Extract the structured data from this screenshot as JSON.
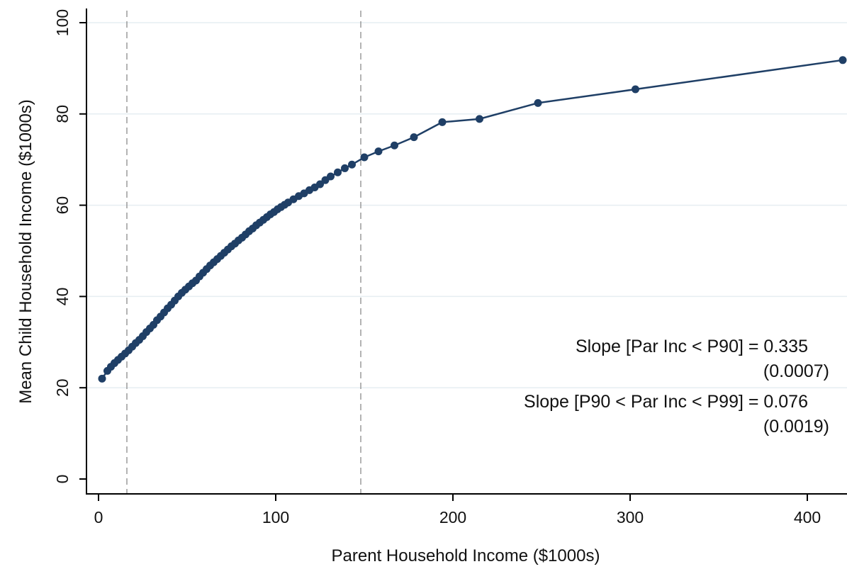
{
  "colors": {
    "series": "#1f3f66",
    "grid": "#e6eef2",
    "axis": "#000000",
    "guide": "#9a9a9a"
  },
  "chart_data": {
    "type": "scatter",
    "xlabel": "Parent Household Income ($1000s)",
    "ylabel": "Mean Child Household Income ($1000s)",
    "xlim": [
      0,
      420
    ],
    "ylim": [
      0,
      100
    ],
    "xticks": [
      0,
      100,
      200,
      300,
      400
    ],
    "yticks": [
      0,
      20,
      40,
      60,
      80,
      100
    ],
    "grid": "horizontal",
    "vertical_reference_lines": [
      16,
      148
    ],
    "series": [
      {
        "connected": true,
        "points": [
          [
            2,
            22.0
          ],
          [
            5,
            23.7
          ],
          [
            7,
            24.6
          ],
          [
            9,
            25.4
          ],
          [
            11,
            26.1
          ],
          [
            13,
            26.8
          ],
          [
            15,
            27.5
          ],
          [
            17,
            28.2
          ],
          [
            19,
            29.0
          ],
          [
            21,
            29.8
          ],
          [
            23,
            30.5
          ],
          [
            25,
            31.3
          ],
          [
            27,
            32.2
          ],
          [
            29,
            33.0
          ],
          [
            31,
            33.8
          ],
          [
            33,
            34.8
          ],
          [
            35,
            35.6
          ],
          [
            37,
            36.5
          ],
          [
            39,
            37.4
          ],
          [
            41,
            38.2
          ],
          [
            43,
            39.1
          ],
          [
            45,
            40.0
          ],
          [
            47,
            40.8
          ],
          [
            49,
            41.5
          ],
          [
            51,
            42.2
          ],
          [
            53,
            42.9
          ],
          [
            55,
            43.5
          ],
          [
            57,
            44.4
          ],
          [
            59,
            45.2
          ],
          [
            61,
            46.0
          ],
          [
            63,
            46.8
          ],
          [
            65,
            47.5
          ],
          [
            67,
            48.2
          ],
          [
            69,
            48.9
          ],
          [
            71,
            49.6
          ],
          [
            73,
            50.3
          ],
          [
            75,
            51.0
          ],
          [
            77,
            51.6
          ],
          [
            79,
            52.3
          ],
          [
            81,
            52.9
          ],
          [
            83,
            53.6
          ],
          [
            85,
            54.3
          ],
          [
            87,
            54.9
          ],
          [
            89,
            55.6
          ],
          [
            91,
            56.2
          ],
          [
            93,
            56.8
          ],
          [
            95,
            57.4
          ],
          [
            97,
            58.0
          ],
          [
            99,
            58.5
          ],
          [
            101,
            59.1
          ],
          [
            103,
            59.6
          ],
          [
            105,
            60.1
          ],
          [
            107,
            60.6
          ],
          [
            110,
            61.3
          ],
          [
            113,
            62.0
          ],
          [
            116,
            62.6
          ],
          [
            119,
            63.3
          ],
          [
            122,
            63.9
          ],
          [
            125,
            64.6
          ],
          [
            128,
            65.5
          ],
          [
            131,
            66.3
          ],
          [
            135,
            67.2
          ],
          [
            139,
            68.1
          ],
          [
            143,
            68.9
          ],
          [
            150,
            70.5
          ],
          [
            158,
            71.8
          ],
          [
            167,
            73.1
          ],
          [
            178,
            74.9
          ],
          [
            194,
            78.2
          ],
          [
            215,
            78.9
          ],
          [
            248,
            82.4
          ],
          [
            303,
            85.4
          ],
          [
            420,
            91.8
          ]
        ]
      }
    ],
    "annotations": [
      "Slope [Par Inc < P90] = 0.335",
      "(0.0007)",
      "Slope [P90 < Par Inc < P99] = 0.076",
      "(0.0019)"
    ]
  }
}
